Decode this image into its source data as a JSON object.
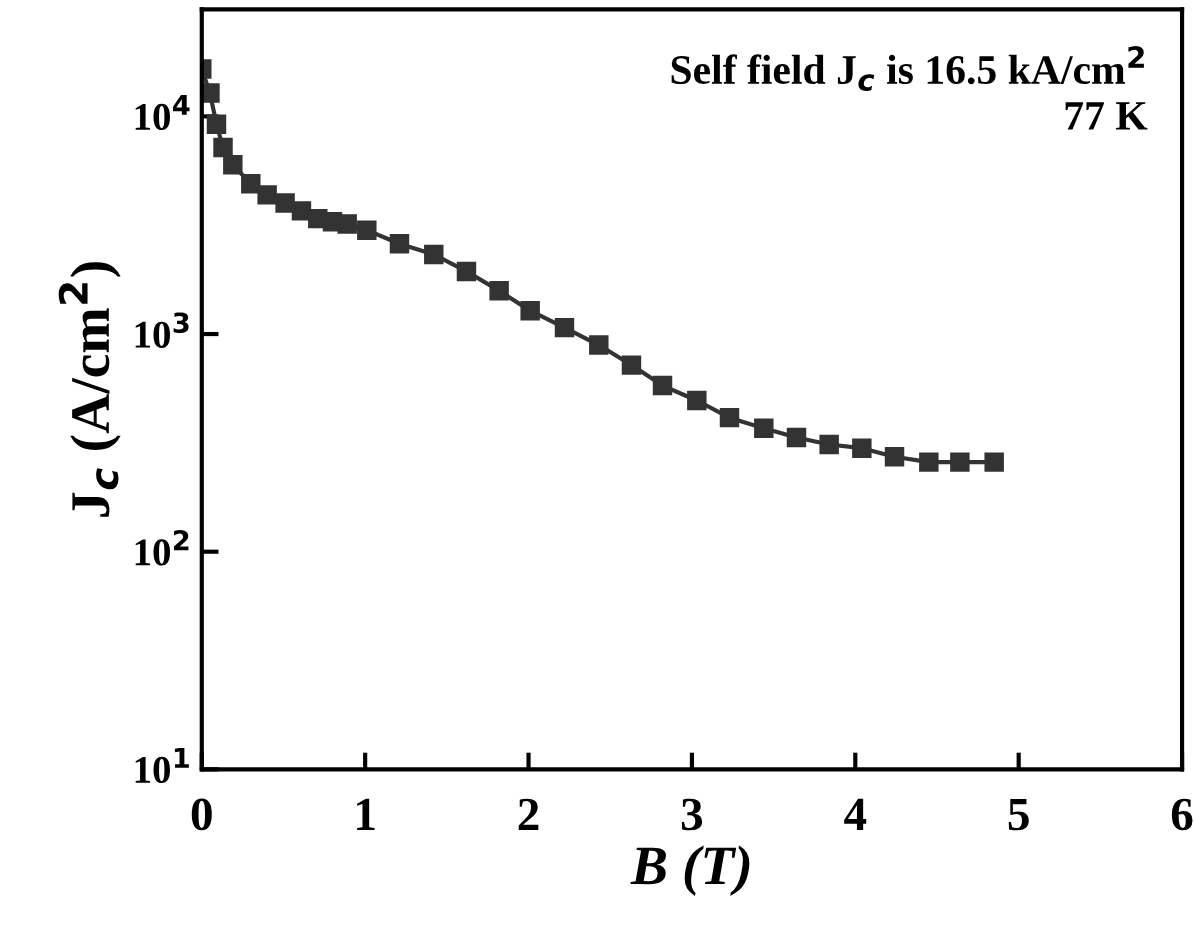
{
  "chart_data": {
    "type": "line",
    "xlabel": "B (T)",
    "ylabel": "J$_{c}$ (A/cm$^{2}$)",
    "annotations": [
      "Self field J$_{c}$ is 16.5 kA/cm$^{2}$",
      "77 K"
    ],
    "log": "y",
    "xlim": [
      0,
      6
    ],
    "xticks": [
      0,
      1,
      2,
      3,
      4,
      5,
      6
    ],
    "ylim": [
      10,
      31000
    ],
    "yticks": [
      {
        "value": 10,
        "label": "10$^{1}$"
      },
      {
        "value": 100,
        "label": "10$^{2}$"
      },
      {
        "value": 1000,
        "label": "10$^{3}$"
      },
      {
        "value": 10000,
        "label": "10$^{4}$"
      }
    ],
    "grid": false,
    "legend": false,
    "marker": "square",
    "line_style": "solid",
    "series": [
      {
        "color": "#333333",
        "x": [
          0,
          0.05,
          0.09,
          0.13,
          0.19,
          0.3,
          0.4,
          0.51,
          0.61,
          0.71,
          0.8,
          0.89,
          1.01,
          1.21,
          1.42,
          1.62,
          1.82,
          2.01,
          2.22,
          2.43,
          2.63,
          2.82,
          3.03,
          3.23,
          3.44,
          3.64,
          3.84,
          4.04,
          4.24,
          4.45,
          4.64,
          4.85
        ],
        "values": [
          16500,
          12800,
          9200,
          7200,
          6000,
          4900,
          4360,
          4000,
          3680,
          3390,
          3280,
          3200,
          3000,
          2600,
          2320,
          1940,
          1580,
          1280,
          1070,
          890,
          720,
          580,
          495,
          413,
          369,
          335,
          311,
          299,
          273,
          258,
          258,
          258
        ]
      }
    ]
  }
}
